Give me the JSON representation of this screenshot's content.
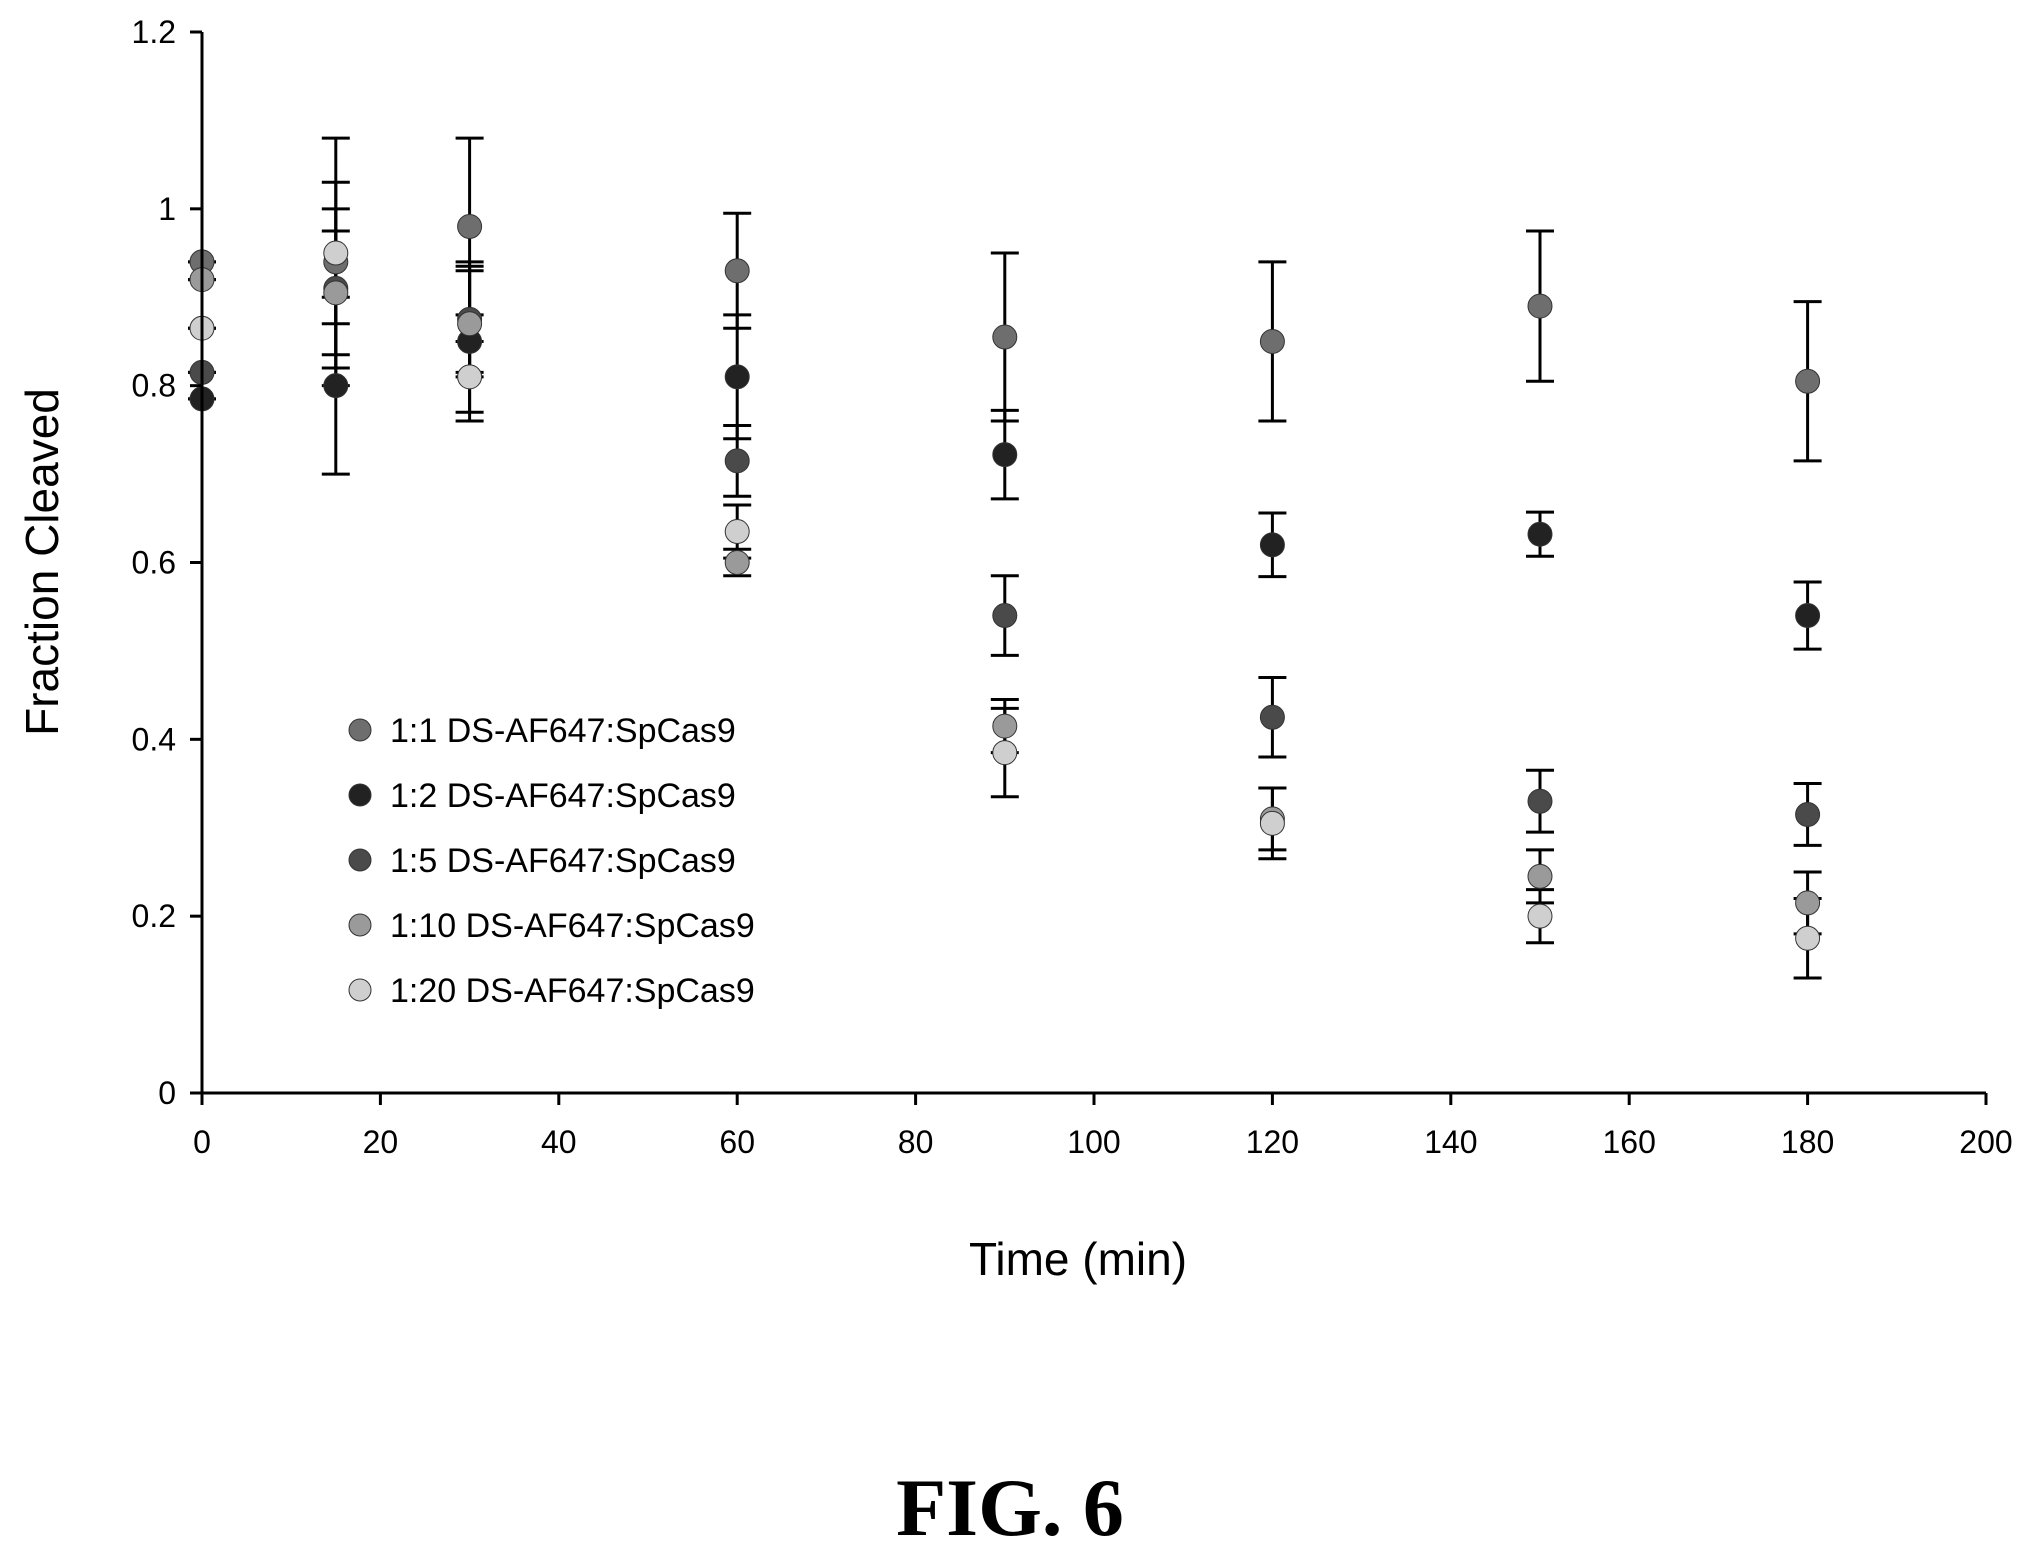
{
  "chart_data": {
    "type": "scatter",
    "title": "",
    "xlabel": "Time (min)",
    "ylabel": "Fraction Cleaved",
    "xlim": [
      0,
      200
    ],
    "ylim": [
      0,
      1.2
    ],
    "xticks": [
      0,
      20,
      40,
      60,
      80,
      100,
      120,
      140,
      160,
      180,
      200
    ],
    "yticks": [
      0,
      0.2,
      0.4,
      0.6,
      0.8,
      1,
      1.2
    ],
    "grid": false,
    "legend_position": "lower-left-inside",
    "error_bars": true,
    "x": [
      0,
      15,
      30,
      60,
      90,
      120,
      150,
      180
    ],
    "series": [
      {
        "name": "1:1 DS-AF647:SpCas9",
        "color": "#6e6e6e",
        "y": [
          0.94,
          0.94,
          0.98,
          0.93,
          0.855,
          0.85,
          0.89,
          0.805
        ],
        "err": [
          0.0,
          0.14,
          0.1,
          0.065,
          0.095,
          0.09,
          0.085,
          0.09
        ]
      },
      {
        "name": "1:2 DS-AF647:SpCas9",
        "color": "#222222",
        "y": [
          0.785,
          0.8,
          0.85,
          0.81,
          0.722,
          0.62,
          0.632,
          0.54
        ],
        "err": [
          0.0,
          0.1,
          0.09,
          0.07,
          0.05,
          0.036,
          0.025,
          0.038
        ]
      },
      {
        "name": "1:5 DS-AF647:SpCas9",
        "color": "#4a4a4a",
        "y": [
          0.815,
          0.91,
          0.875,
          0.715,
          0.54,
          0.425,
          0.33,
          0.315
        ],
        "err": [
          0.0,
          0.09,
          0.06,
          0.04,
          0.045,
          0.045,
          0.035,
          0.035
        ]
      },
      {
        "name": "1:10 DS-AF647:SpCas9",
        "color": "#9a9a9a",
        "y": [
          0.92,
          0.905,
          0.87,
          0.6,
          0.415,
          0.31,
          0.245,
          0.215
        ],
        "err": [
          0.0,
          0.07,
          0.06,
          0.015,
          0.03,
          0.035,
          0.03,
          0.035
        ]
      },
      {
        "name": "1:20 DS-AF647:SpCas9",
        "color": "#cfcfcf",
        "y": [
          0.865,
          0.95,
          0.81,
          0.635,
          0.385,
          0.305,
          0.2,
          0.175
        ],
        "err": [
          0.0,
          0.08,
          0.04,
          0.03,
          0.05,
          0.04,
          0.03,
          0.045
        ]
      }
    ]
  },
  "caption": "FIG. 6"
}
